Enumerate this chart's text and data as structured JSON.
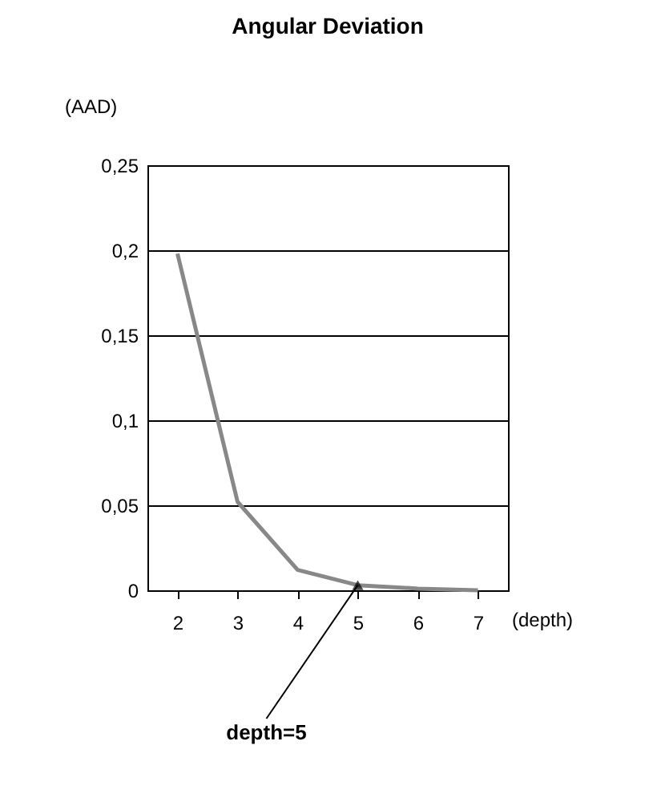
{
  "chart_data": {
    "type": "line",
    "title": "Angular Deviation",
    "xlabel": "(depth)",
    "ylabel": "(AAD)",
    "categories": [
      "2",
      "3",
      "4",
      "5",
      "6",
      "7"
    ],
    "series": [
      {
        "color": "#888888",
        "values": [
          0.198,
          0.052,
          0.012,
          0.003,
          0.001,
          0
        ]
      }
    ],
    "ylim": [
      0,
      0.25
    ],
    "yticks": [
      {
        "value": 0,
        "label": "0"
      },
      {
        "value": 0.05,
        "label": "0,05"
      },
      {
        "value": 0.1,
        "label": "0,1"
      },
      {
        "value": 0.15,
        "label": "0,15"
      },
      {
        "value": 0.2,
        "label": "0,2"
      },
      {
        "value": 0.25,
        "label": "0,25"
      }
    ],
    "grid": "y",
    "marker": "none",
    "line_style": "solid",
    "annotations": [
      {
        "text": "depth=5",
        "x": "5",
        "y": 0.003
      }
    ]
  }
}
